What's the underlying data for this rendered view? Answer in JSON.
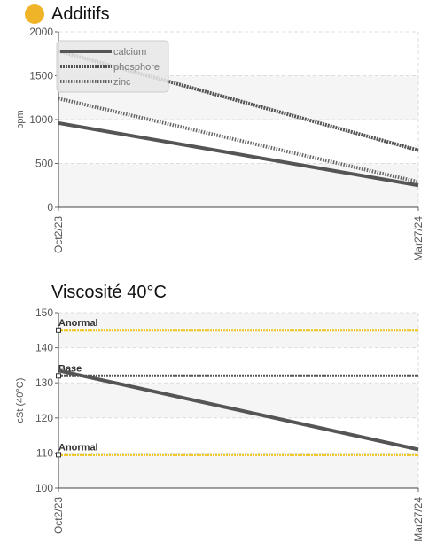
{
  "charts": {
    "additifs": {
      "title": "Additifs",
      "title_color": "#f0b429"
    },
    "viscosite": {
      "title": "Viscosité 40°C"
    }
  },
  "chart_data": [
    {
      "type": "line",
      "title": "Additifs",
      "xlabel": "",
      "ylabel": "ppm",
      "categories": [
        "Oct2/23",
        "Mar27/24"
      ],
      "ylim": [
        0,
        2000
      ],
      "yticks": [
        0,
        500,
        1000,
        1500,
        2000
      ],
      "grid": true,
      "legend": "top-left",
      "series": [
        {
          "name": "calcium",
          "values": [
            960,
            250
          ],
          "color": "#555555",
          "style": "solid"
        },
        {
          "name": "phosphore",
          "values": [
            1780,
            650
          ],
          "color": "#555555",
          "style": "dense-dotted"
        },
        {
          "name": "zinc",
          "values": [
            1240,
            290
          ],
          "color": "#666666",
          "style": "dotted"
        }
      ]
    },
    {
      "type": "line",
      "title": "Viscosité 40°C",
      "xlabel": "",
      "ylabel": "cSt (40°C)",
      "categories": [
        "Oct2/23",
        "Mar27/24"
      ],
      "ylim": [
        100,
        150
      ],
      "yticks": [
        100,
        110,
        120,
        130,
        140,
        150
      ],
      "grid": true,
      "series": [
        {
          "name": "",
          "values": [
            133.5,
            111
          ],
          "color": "#555555",
          "style": "solid"
        }
      ],
      "reference_lines": [
        {
          "label": "Anormal",
          "value": 145,
          "color": "#f0c419"
        },
        {
          "label": "Base",
          "value": 132,
          "color": "#555555"
        },
        {
          "label": "Anormal",
          "value": 109.5,
          "color": "#f0c419"
        }
      ]
    }
  ]
}
